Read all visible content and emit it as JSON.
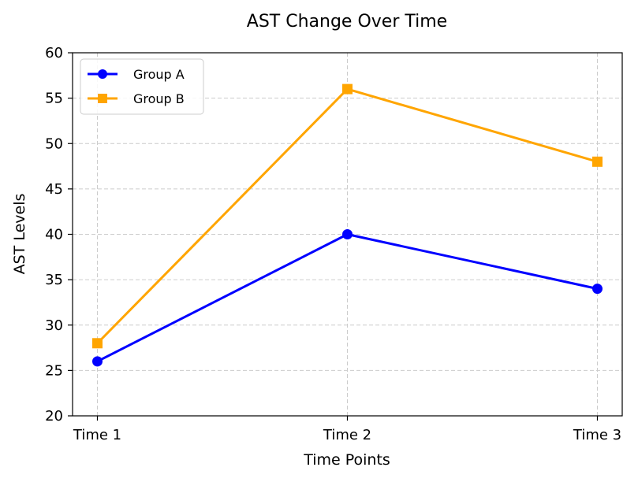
{
  "chart_data": {
    "type": "line",
    "title": "AST Change Over Time",
    "xlabel": "Time Points",
    "ylabel": "AST Levels",
    "categories": [
      "Time 1",
      "Time 2",
      "Time 3"
    ],
    "ylim": [
      20,
      60
    ],
    "yticks": [
      20,
      25,
      30,
      35,
      40,
      45,
      50,
      55,
      60
    ],
    "grid": true,
    "legend_position": "top-left",
    "series": [
      {
        "name": "Group A",
        "values": [
          26,
          40,
          34
        ],
        "color": "#0000ff",
        "marker": "circle"
      },
      {
        "name": "Group B",
        "values": [
          28,
          56,
          48
        ],
        "color": "#ffa500",
        "marker": "square"
      }
    ]
  }
}
